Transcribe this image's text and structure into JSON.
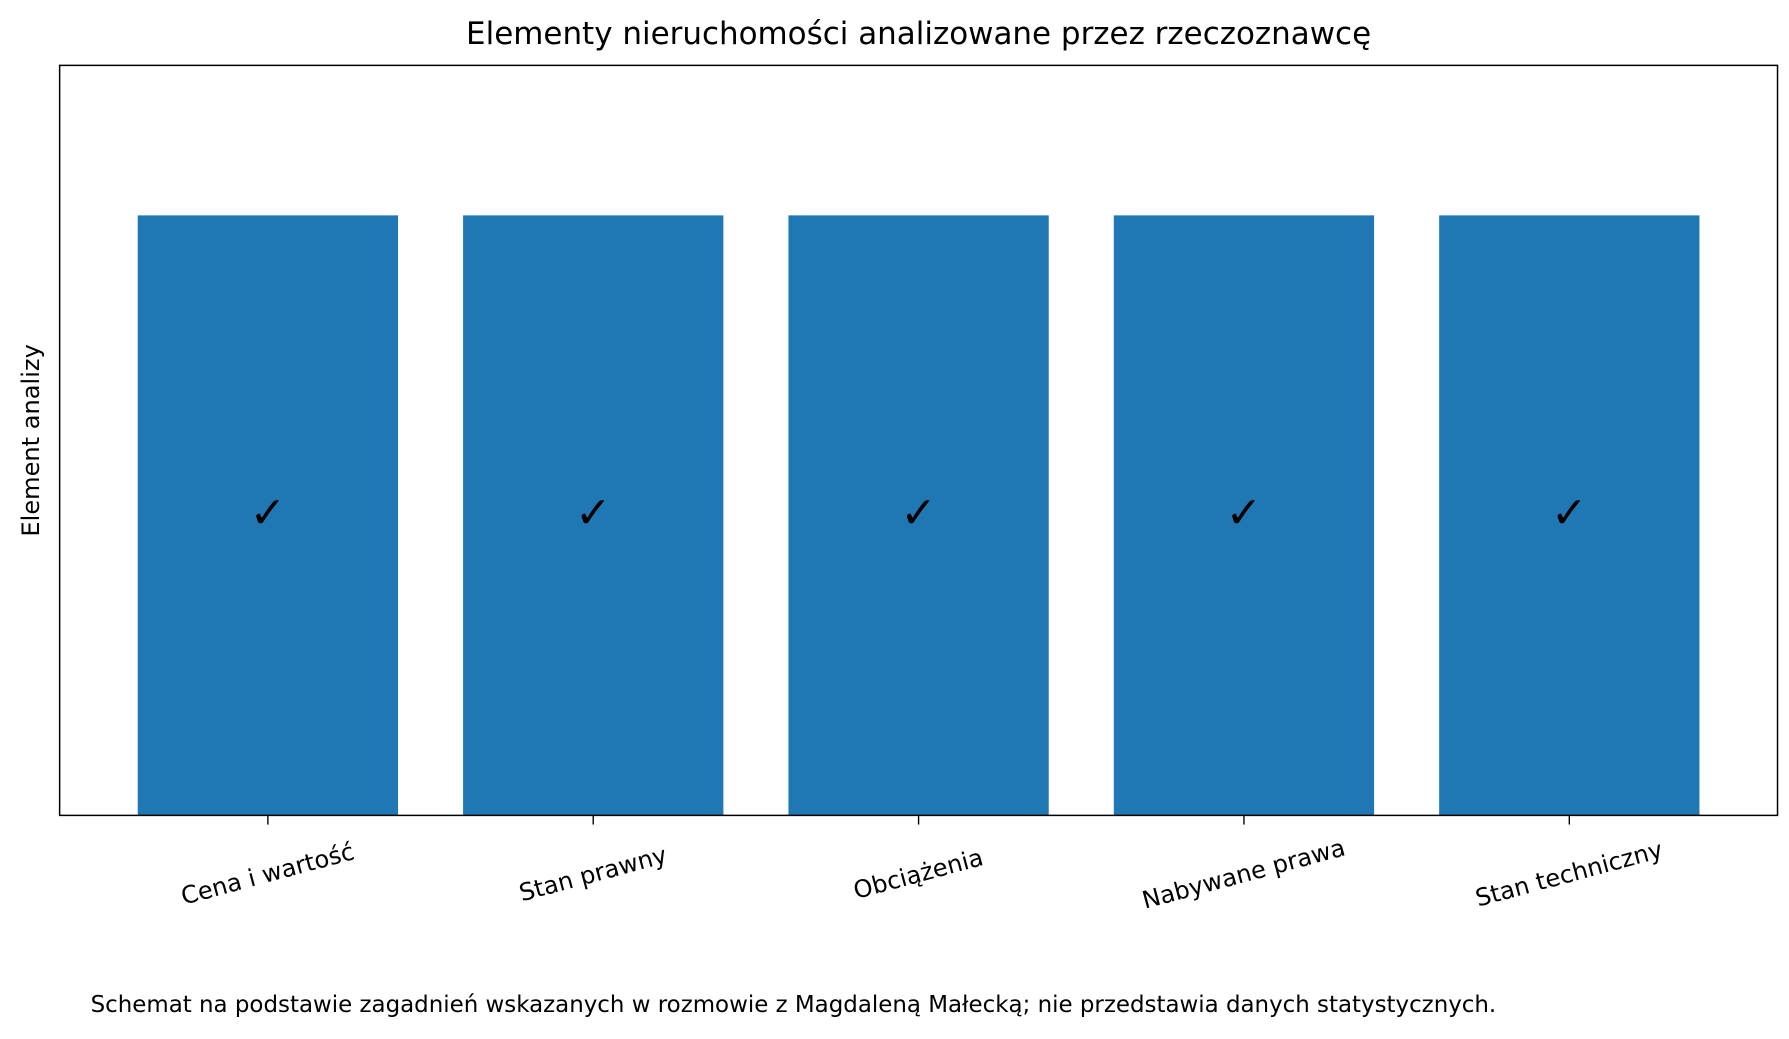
{
  "chart_data": {
    "type": "bar",
    "title": "Elementy nieruchomości analizowane przez rzeczoznawcę",
    "ylabel": "Element analizy",
    "categories": [
      "Cena i wartość",
      "Stan prawny",
      "Obciążenia",
      "Nabywane prawa",
      "Stan techniczny"
    ],
    "values": [
      1,
      1,
      1,
      1,
      1
    ],
    "value_labels": [
      "✓",
      "✓",
      "✓",
      "✓",
      "✓"
    ],
    "color": "#1f77b4",
    "ylim": [
      0,
      1.25
    ],
    "note": "Schemat na podstawie zagadnień wskazanych w rozmowie z Magdaleną Małecką; nie przedstawia danych statystycznych."
  }
}
